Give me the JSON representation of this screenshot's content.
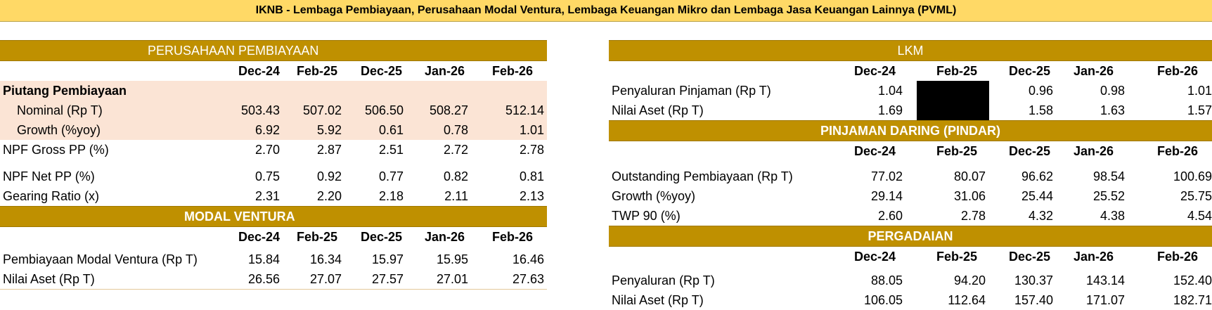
{
  "title": "IKNB - Lembaga Pembiayaan, Perusahaan Modal Ventura, Lembaga Keuangan Mikro dan Lembaga Jasa Keuangan Lainnya (PVML)",
  "columns": [
    "Dec-24",
    "Feb-25",
    "Dec-25",
    "Jan-26",
    "Feb-26"
  ],
  "perusahaan_pembiayaan": {
    "header": "PERUSAHAAN PEMBIAYAAN",
    "group_label": "Piutang Pembiayaan",
    "rows": [
      {
        "label": "Nominal (Rp T)",
        "values": [
          "503.43",
          "507.02",
          "506.50",
          "508.27",
          "512.14"
        ]
      },
      {
        "label": "Growth (%yoy)",
        "values": [
          "6.92",
          "5.92",
          "0.61",
          "0.78",
          "1.01"
        ]
      },
      {
        "label": "NPF Gross PP (%)",
        "values": [
          "2.70",
          "2.87",
          "2.51",
          "2.72",
          "2.78"
        ]
      },
      {
        "label": "NPF Net PP (%)",
        "values": [
          "0.75",
          "0.92",
          "0.77",
          "0.82",
          "0.81"
        ]
      },
      {
        "label": "Gearing Ratio (x)",
        "values": [
          "2.31",
          "2.20",
          "2.18",
          "2.11",
          "2.13"
        ]
      }
    ]
  },
  "modal_ventura": {
    "header": "MODAL VENTURA",
    "rows": [
      {
        "label": "Pembiayaan Modal Ventura (Rp T)",
        "values": [
          "15.84",
          "16.34",
          "15.97",
          "15.95",
          "16.46"
        ]
      },
      {
        "label": "Nilai Aset (Rp T)",
        "values": [
          "26.56",
          "27.07",
          "27.57",
          "27.01",
          "27.63"
        ]
      }
    ]
  },
  "lkm": {
    "header": "LKM",
    "rows": [
      {
        "label": "Penyaluran Pinjaman (Rp T)",
        "values": [
          "1.04",
          "",
          "0.96",
          "0.98",
          "1.01"
        ]
      },
      {
        "label": "Nilai Aset (Rp T)",
        "values": [
          "1.69",
          "",
          "1.58",
          "1.63",
          "1.57"
        ]
      }
    ]
  },
  "pindar": {
    "header": "PINJAMAN DARING (PINDAR)",
    "rows": [
      {
        "label": "Outstanding Pembiayaan (Rp T)",
        "values": [
          "77.02",
          "80.07",
          "96.62",
          "98.54",
          "100.69"
        ]
      },
      {
        "label": "Growth (%yoy)",
        "values": [
          "29.14",
          "31.06",
          "25.44",
          "25.52",
          "25.75"
        ]
      },
      {
        "label": "TWP 90 (%)",
        "values": [
          "2.60",
          "2.78",
          "4.32",
          "4.38",
          "4.54"
        ]
      }
    ]
  },
  "pergadaian": {
    "header": "PERGADAIAN",
    "rows": [
      {
        "label": "Penyaluran (Rp T)",
        "values": [
          "88.05",
          "94.20",
          "130.37",
          "143.14",
          "152.40"
        ]
      },
      {
        "label": "Nilai Aset (Rp T)",
        "values": [
          "106.05",
          "112.64",
          "157.40",
          "171.07",
          "182.71"
        ]
      }
    ]
  },
  "colors": {
    "title_bg": "#ffd966",
    "section_bg": "#bf9000",
    "shade": "#fbe4d5"
  }
}
